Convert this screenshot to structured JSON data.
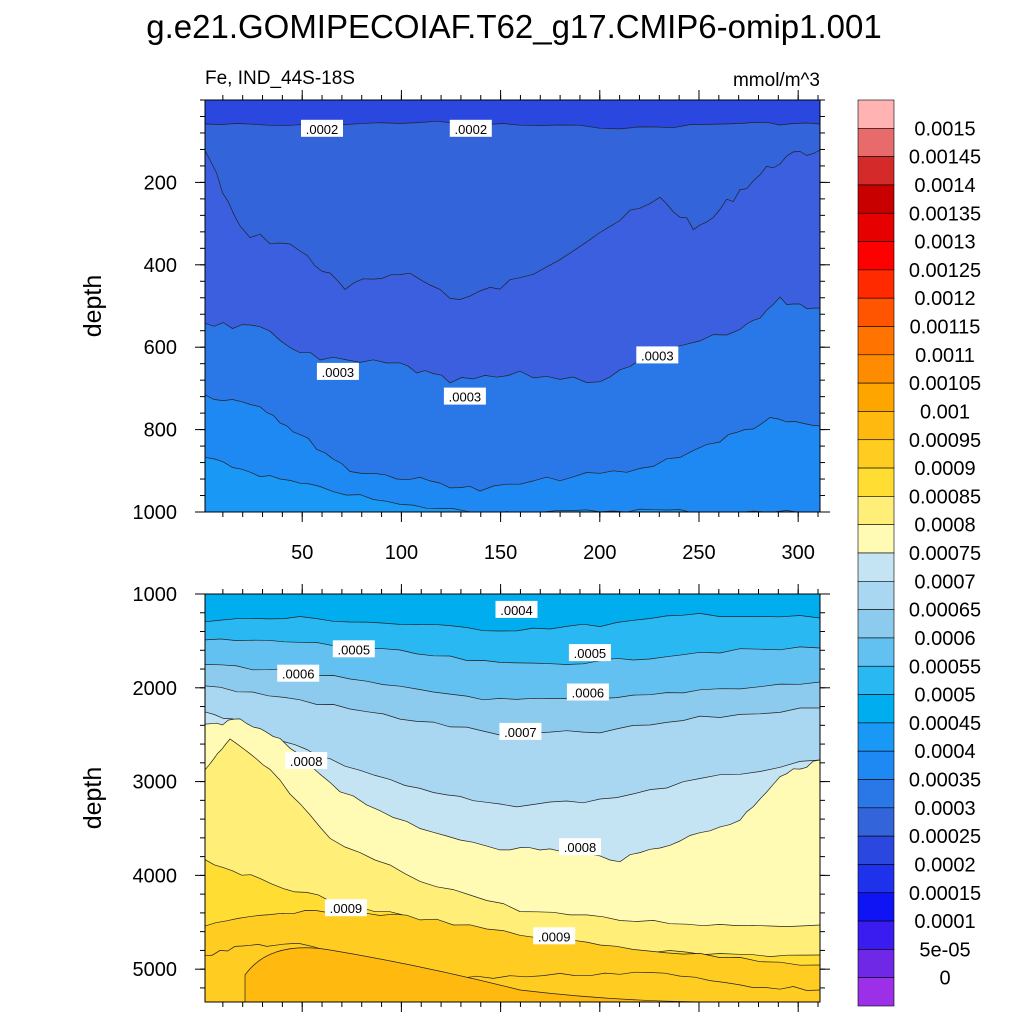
{
  "chart_data": {
    "type": "contour",
    "title": "g.e21.GOMIPECOIAF.T62_g17.CMIP6-omip1.001",
    "variable_label": "Fe, IND_44S-18S",
    "units_label": "mmol/m^3",
    "ylabel": "depth",
    "xlabel": "",
    "x_ticks": [
      "50",
      "100",
      "150",
      "200",
      "250",
      "300"
    ],
    "x_range": [
      1,
      311
    ],
    "panels": [
      {
        "name": "upper",
        "ylim": [
          1000,
          0
        ],
        "y_ticks": [
          "200",
          "400",
          "600",
          "800",
          "1000"
        ],
        "contour_labels": [
          {
            "text": ".0002",
            "x": 60,
            "y": 70
          },
          {
            "text": ".0002",
            "x": 135,
            "y": 70
          },
          {
            "text": ".0003",
            "x": 68,
            "y": 660
          },
          {
            "text": ".0003",
            "x": 132,
            "y": 720
          },
          {
            "text": ".0003",
            "x": 229,
            "y": 620
          }
        ]
      },
      {
        "name": "lower",
        "ylim": [
          5350,
          1000
        ],
        "y_ticks": [
          "1000",
          "2000",
          "3000",
          "4000",
          "5000"
        ],
        "contour_labels": [
          {
            "text": ".0004",
            "x": 158,
            "y": 1170
          },
          {
            "text": ".0005",
            "x": 76,
            "y": 1590
          },
          {
            "text": ".0005",
            "x": 195,
            "y": 1630
          },
          {
            "text": ".0006",
            "x": 48,
            "y": 1850
          },
          {
            "text": ".0006",
            "x": 194,
            "y": 2050
          },
          {
            "text": ".0007",
            "x": 160,
            "y": 2470
          },
          {
            "text": ".0008",
            "x": 52,
            "y": 2780
          },
          {
            "text": ".0008",
            "x": 190,
            "y": 3700
          },
          {
            "text": ".0009",
            "x": 72,
            "y": 4350
          },
          {
            "text": ".0009",
            "x": 177,
            "y": 4650
          }
        ]
      }
    ],
    "colorbar": {
      "labels": [
        "0.0015",
        "0.00145",
        "0.0014",
        "0.00135",
        "0.0013",
        "0.00125",
        "0.0012",
        "0.00115",
        "0.0011",
        "0.00105",
        "0.001",
        "0.00095",
        "0.0009",
        "0.00085",
        "0.0008",
        "0.00075",
        "0.0007",
        "0.00065",
        "0.0006",
        "0.00055",
        "0.0005",
        "0.00045",
        "0.0004",
        "0.00035",
        "0.0003",
        "0.00025",
        "0.0002",
        "0.00015",
        "0.0001",
        "5e-05",
        "0"
      ],
      "colors": [
        "#FFB3B3",
        "#E86B6B",
        "#D42A2A",
        "#C80000",
        "#E60000",
        "#FF0000",
        "#FF2A00",
        "#FF5500",
        "#FF7300",
        "#FF8C00",
        "#FFA500",
        "#FFB90F",
        "#FFCC22",
        "#FFDD33",
        "#FFEE77",
        "#FFFAB4",
        "#C4E4F4",
        "#A9D7F1",
        "#8CCBEE",
        "#62C1F1",
        "#2AB8F2",
        "#00AEEF",
        "#1A98F5",
        "#1F89F3",
        "#2A77E8",
        "#3364D9",
        "#2A47E0",
        "#1E32EB",
        "#0F14F5",
        "#3A1CF0",
        "#6E28E6",
        "#9B30E8"
      ]
    },
    "fill_levels_upper": [
      0.0002,
      0.00025,
      0.0003,
      0.00035,
      0.0004
    ],
    "fill_levels_lower": [
      0.0004,
      0.00045,
      0.0005,
      0.00055,
      0.0006,
      0.00065,
      0.0007,
      0.00075,
      0.0008,
      0.00085,
      0.0009,
      0.00095
    ]
  }
}
